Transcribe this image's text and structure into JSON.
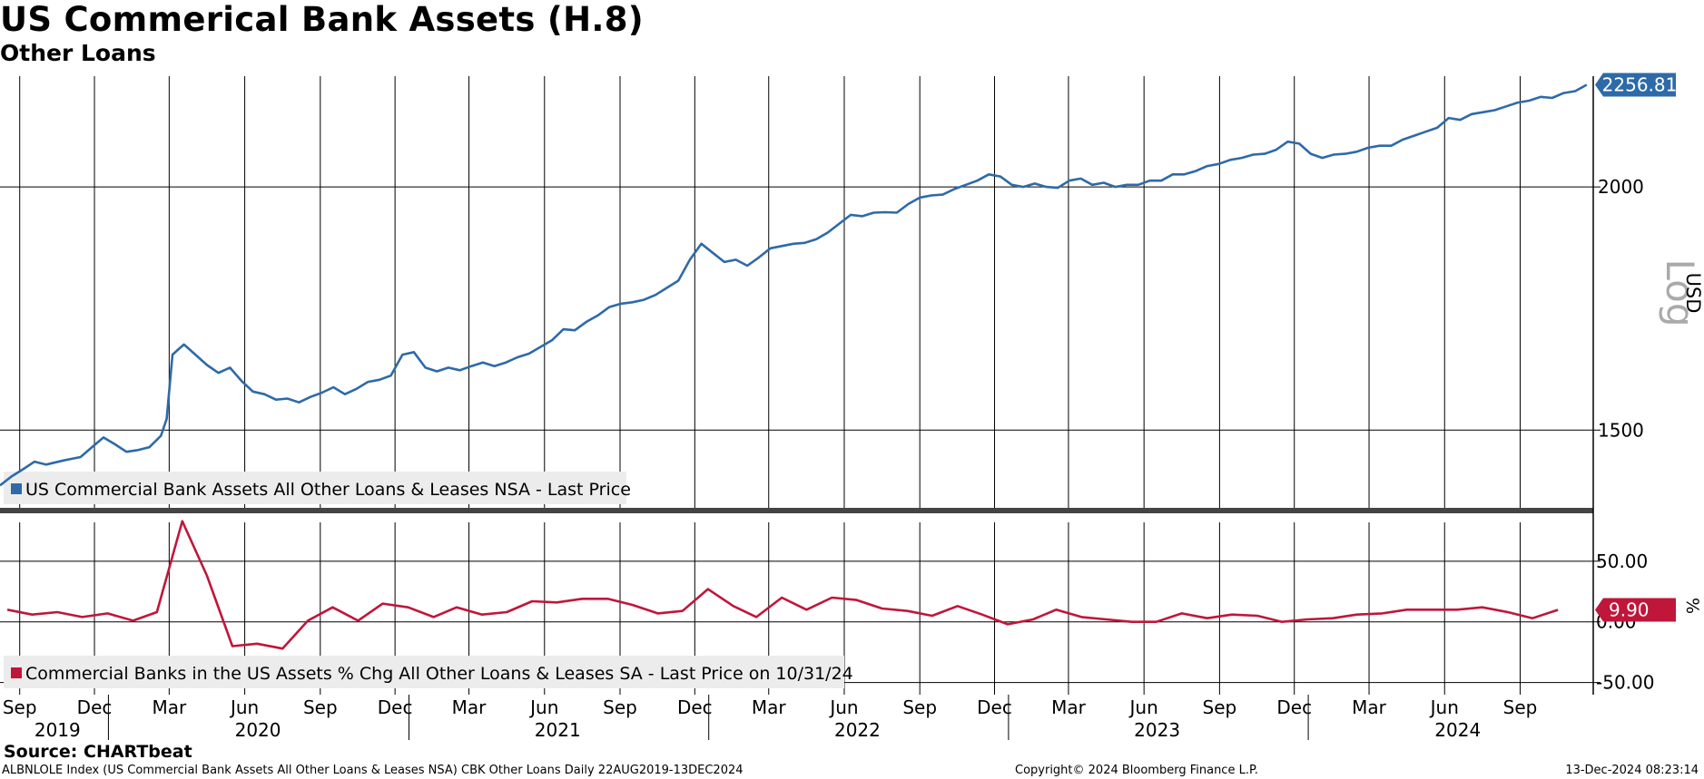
{
  "title": "US Commerical Bank Assets (H.8)",
  "subtitle": "Other Loans",
  "source": "Source: CHARTbeat",
  "footer": {
    "left": "ALBNLOLE Index (US Commercial Bank Assets All Other Loans & Leases NSA) CBK Other Loans  Daily 22AUG2019-13DEC2024",
    "middle": "Copyright© 2024 Bloomberg Finance L.P.",
    "right": "13-Dec-2024 08:23:14"
  },
  "colors": {
    "series1": "#2e6aa8",
    "series2": "#c0163a",
    "grid": "#000000"
  },
  "chart_data": [
    {
      "type": "line",
      "x_axis": {
        "range": [
          "2019-08-22",
          "2024-12-13"
        ],
        "month_ticks": [
          {
            "label": "Sep",
            "date": "2019-09-15"
          },
          {
            "label": "Dec",
            "date": "2019-12-15"
          },
          {
            "label": "Mar",
            "date": "2020-03-15"
          },
          {
            "label": "Jun",
            "date": "2020-06-15"
          },
          {
            "label": "Sep",
            "date": "2020-09-15"
          },
          {
            "label": "Dec",
            "date": "2020-12-15"
          },
          {
            "label": "Mar",
            "date": "2021-03-15"
          },
          {
            "label": "Jun",
            "date": "2021-06-15"
          },
          {
            "label": "Sep",
            "date": "2021-09-15"
          },
          {
            "label": "Dec",
            "date": "2021-12-15"
          },
          {
            "label": "Mar",
            "date": "2022-03-15"
          },
          {
            "label": "Jun",
            "date": "2022-06-15"
          },
          {
            "label": "Sep",
            "date": "2022-09-15"
          },
          {
            "label": "Dec",
            "date": "2022-12-15"
          },
          {
            "label": "Mar",
            "date": "2023-03-15"
          },
          {
            "label": "Jun",
            "date": "2023-06-15"
          },
          {
            "label": "Sep",
            "date": "2023-09-15"
          },
          {
            "label": "Dec",
            "date": "2023-12-15"
          },
          {
            "label": "Mar",
            "date": "2024-03-15"
          },
          {
            "label": "Jun",
            "date": "2024-06-15"
          },
          {
            "label": "Sep",
            "date": "2024-09-15"
          }
        ],
        "years": [
          {
            "label": "2019",
            "date": "2019-10-31"
          },
          {
            "label": "2020",
            "date": "2020-07-01"
          },
          {
            "label": "2021",
            "date": "2021-07-01"
          },
          {
            "label": "2022",
            "date": "2022-07-01"
          },
          {
            "label": "2023",
            "date": "2023-07-01"
          },
          {
            "label": "2024",
            "date": "2024-07-01"
          }
        ]
      },
      "y_axis": {
        "scale": "log",
        "label": "USD",
        "scale_label": "Log",
        "range": [
          1380,
          2280
        ],
        "ticks": [
          1500,
          2000
        ]
      },
      "grid": true,
      "last_value_label": "2256.81",
      "series": [
        {
          "name": "US Commercial Bank Assets All Other Loans & Leases NSA - Last Price",
          "points": [
            [
              "2019-08-22",
              1405
            ],
            [
              "2019-09-05",
              1420
            ],
            [
              "2019-09-19",
              1432
            ],
            [
              "2019-10-03",
              1445
            ],
            [
              "2019-10-17",
              1440
            ],
            [
              "2019-11-07",
              1447
            ],
            [
              "2019-11-28",
              1453
            ],
            [
              "2019-12-12",
              1470
            ],
            [
              "2019-12-26",
              1487
            ],
            [
              "2020-01-09",
              1475
            ],
            [
              "2020-01-23",
              1462
            ],
            [
              "2020-02-06",
              1465
            ],
            [
              "2020-02-20",
              1470
            ],
            [
              "2020-03-05",
              1490
            ],
            [
              "2020-03-12",
              1520
            ],
            [
              "2020-03-19",
              1640
            ],
            [
              "2020-03-26",
              1650
            ],
            [
              "2020-04-02",
              1660
            ],
            [
              "2020-04-16",
              1640
            ],
            [
              "2020-04-30",
              1620
            ],
            [
              "2020-05-14",
              1605
            ],
            [
              "2020-05-28",
              1615
            ],
            [
              "2020-06-11",
              1590
            ],
            [
              "2020-06-25",
              1570
            ],
            [
              "2020-07-09",
              1565
            ],
            [
              "2020-07-23",
              1555
            ],
            [
              "2020-08-06",
              1557
            ],
            [
              "2020-08-20",
              1550
            ],
            [
              "2020-09-03",
              1560
            ],
            [
              "2020-09-17",
              1568
            ],
            [
              "2020-10-01",
              1578
            ],
            [
              "2020-10-15",
              1565
            ],
            [
              "2020-10-29",
              1575
            ],
            [
              "2020-11-12",
              1588
            ],
            [
              "2020-11-26",
              1592
            ],
            [
              "2020-12-10",
              1600
            ],
            [
              "2020-12-24",
              1640
            ],
            [
              "2021-01-07",
              1645
            ],
            [
              "2021-01-21",
              1615
            ],
            [
              "2021-02-04",
              1608
            ],
            [
              "2021-02-18",
              1615
            ],
            [
              "2021-03-04",
              1610
            ],
            [
              "2021-03-18",
              1618
            ],
            [
              "2021-04-01",
              1625
            ],
            [
              "2021-04-15",
              1618
            ],
            [
              "2021-04-29",
              1625
            ],
            [
              "2021-05-13",
              1635
            ],
            [
              "2021-05-27",
              1642
            ],
            [
              "2021-06-10",
              1655
            ],
            [
              "2021-06-24",
              1668
            ],
            [
              "2021-07-08",
              1690
            ],
            [
              "2021-07-22",
              1688
            ],
            [
              "2021-08-05",
              1705
            ],
            [
              "2021-08-19",
              1718
            ],
            [
              "2021-09-02",
              1735
            ],
            [
              "2021-09-16",
              1742
            ],
            [
              "2021-09-30",
              1745
            ],
            [
              "2021-10-14",
              1750
            ],
            [
              "2021-10-28",
              1760
            ],
            [
              "2021-11-11",
              1775
            ],
            [
              "2021-11-25",
              1790
            ],
            [
              "2021-12-09",
              1835
            ],
            [
              "2021-12-23",
              1870
            ],
            [
              "2022-01-06",
              1850
            ],
            [
              "2022-01-20",
              1830
            ],
            [
              "2022-02-03",
              1835
            ],
            [
              "2022-02-17",
              1822
            ],
            [
              "2022-03-03",
              1840
            ],
            [
              "2022-03-17",
              1860
            ],
            [
              "2022-03-31",
              1865
            ],
            [
              "2022-04-14",
              1870
            ],
            [
              "2022-04-28",
              1872
            ],
            [
              "2022-05-12",
              1880
            ],
            [
              "2022-05-26",
              1895
            ],
            [
              "2022-06-09",
              1915
            ],
            [
              "2022-06-23",
              1935
            ],
            [
              "2022-07-07",
              1932
            ],
            [
              "2022-07-21",
              1940
            ],
            [
              "2022-08-04",
              1941
            ],
            [
              "2022-08-18",
              1940
            ],
            [
              "2022-09-01",
              1960
            ],
            [
              "2022-09-15",
              1975
            ],
            [
              "2022-09-29",
              1980
            ],
            [
              "2022-10-13",
              1982
            ],
            [
              "2022-10-27",
              1995
            ],
            [
              "2022-11-10",
              2005
            ],
            [
              "2022-11-24",
              2015
            ],
            [
              "2022-12-08",
              2030
            ],
            [
              "2022-12-22",
              2025
            ],
            [
              "2023-01-05",
              2005
            ],
            [
              "2023-01-19",
              2000
            ],
            [
              "2023-02-02",
              2008
            ],
            [
              "2023-02-16",
              2000
            ],
            [
              "2023-03-02",
              1998
            ],
            [
              "2023-03-16",
              2015
            ],
            [
              "2023-03-30",
              2020
            ],
            [
              "2023-04-13",
              2005
            ],
            [
              "2023-04-27",
              2010
            ],
            [
              "2023-05-11",
              2000
            ],
            [
              "2023-05-25",
              2005
            ],
            [
              "2023-06-08",
              2005
            ],
            [
              "2023-06-22",
              2015
            ],
            [
              "2023-07-06",
              2015
            ],
            [
              "2023-07-20",
              2030
            ],
            [
              "2023-08-03",
              2030
            ],
            [
              "2023-08-17",
              2038
            ],
            [
              "2023-08-31",
              2050
            ],
            [
              "2023-09-14",
              2055
            ],
            [
              "2023-09-28",
              2065
            ],
            [
              "2023-10-12",
              2070
            ],
            [
              "2023-10-26",
              2078
            ],
            [
              "2023-11-09",
              2080
            ],
            [
              "2023-11-23",
              2090
            ],
            [
              "2023-12-07",
              2110
            ],
            [
              "2023-12-21",
              2105
            ],
            [
              "2024-01-04",
              2080
            ],
            [
              "2024-01-18",
              2070
            ],
            [
              "2024-02-01",
              2078
            ],
            [
              "2024-02-15",
              2080
            ],
            [
              "2024-02-29",
              2085
            ],
            [
              "2024-03-14",
              2095
            ],
            [
              "2024-03-28",
              2100
            ],
            [
              "2024-04-11",
              2100
            ],
            [
              "2024-04-25",
              2115
            ],
            [
              "2024-05-09",
              2125
            ],
            [
              "2024-05-23",
              2135
            ],
            [
              "2024-06-06",
              2145
            ],
            [
              "2024-06-20",
              2170
            ],
            [
              "2024-07-04",
              2165
            ],
            [
              "2024-07-18",
              2180
            ],
            [
              "2024-08-01",
              2185
            ],
            [
              "2024-08-15",
              2190
            ],
            [
              "2024-08-29",
              2200
            ],
            [
              "2024-09-12",
              2210
            ],
            [
              "2024-09-26",
              2215
            ],
            [
              "2024-10-10",
              2225
            ],
            [
              "2024-10-24",
              2222
            ],
            [
              "2024-11-07",
              2235
            ],
            [
              "2024-11-21",
              2240
            ],
            [
              "2024-12-05",
              2256.81
            ]
          ]
        }
      ]
    },
    {
      "type": "line",
      "y_axis": {
        "label": "%",
        "range": [
          -60,
          82
        ],
        "ticks": [
          -50,
          0,
          50
        ],
        "tick_labels": [
          "-50.00",
          "0.00",
          "50.00"
        ]
      },
      "grid": true,
      "last_value_label": "9.90",
      "series": [
        {
          "name": "Commercial Banks in the US Assets % Chg All Other Loans & Leases SA - Last Price on 10/31/24",
          "points": [
            [
              "2019-08-31",
              10
            ],
            [
              "2019-09-30",
              6
            ],
            [
              "2019-10-31",
              8
            ],
            [
              "2019-11-30",
              4
            ],
            [
              "2019-12-31",
              7
            ],
            [
              "2020-01-31",
              1
            ],
            [
              "2020-02-29",
              8
            ],
            [
              "2020-03-31",
              83
            ],
            [
              "2020-04-30",
              38
            ],
            [
              "2020-05-31",
              -20
            ],
            [
              "2020-06-30",
              -18
            ],
            [
              "2020-07-31",
              -22
            ],
            [
              "2020-08-31",
              1
            ],
            [
              "2020-09-30",
              12
            ],
            [
              "2020-10-31",
              1
            ],
            [
              "2020-11-30",
              15
            ],
            [
              "2020-12-31",
              12
            ],
            [
              "2021-01-31",
              4
            ],
            [
              "2021-02-28",
              12
            ],
            [
              "2021-03-31",
              6
            ],
            [
              "2021-04-30",
              8
            ],
            [
              "2021-05-31",
              17
            ],
            [
              "2021-06-30",
              16
            ],
            [
              "2021-07-31",
              19
            ],
            [
              "2021-08-31",
              19
            ],
            [
              "2021-09-30",
              14
            ],
            [
              "2021-10-31",
              7
            ],
            [
              "2021-11-30",
              9
            ],
            [
              "2021-12-31",
              27
            ],
            [
              "2022-01-31",
              13
            ],
            [
              "2022-02-28",
              4
            ],
            [
              "2022-03-31",
              20
            ],
            [
              "2022-04-30",
              10
            ],
            [
              "2022-05-31",
              20
            ],
            [
              "2022-06-30",
              18
            ],
            [
              "2022-07-31",
              11
            ],
            [
              "2022-08-31",
              9
            ],
            [
              "2022-09-30",
              5
            ],
            [
              "2022-10-31",
              13
            ],
            [
              "2022-11-30",
              6
            ],
            [
              "2022-12-31",
              -2
            ],
            [
              "2023-01-31",
              2
            ],
            [
              "2023-02-28",
              10
            ],
            [
              "2023-03-31",
              4
            ],
            [
              "2023-04-30",
              2
            ],
            [
              "2023-05-31",
              0
            ],
            [
              "2023-06-30",
              0
            ],
            [
              "2023-07-31",
              7
            ],
            [
              "2023-08-31",
              3
            ],
            [
              "2023-09-30",
              6
            ],
            [
              "2023-10-31",
              5
            ],
            [
              "2023-11-30",
              0
            ],
            [
              "2023-12-31",
              2
            ],
            [
              "2024-01-31",
              3
            ],
            [
              "2024-02-29",
              6
            ],
            [
              "2024-03-31",
              7
            ],
            [
              "2024-04-30",
              10
            ],
            [
              "2024-05-31",
              10
            ],
            [
              "2024-06-30",
              10
            ],
            [
              "2024-07-31",
              12
            ],
            [
              "2024-08-31",
              8
            ],
            [
              "2024-09-30",
              3
            ],
            [
              "2024-10-31",
              9.9
            ]
          ]
        }
      ]
    }
  ]
}
